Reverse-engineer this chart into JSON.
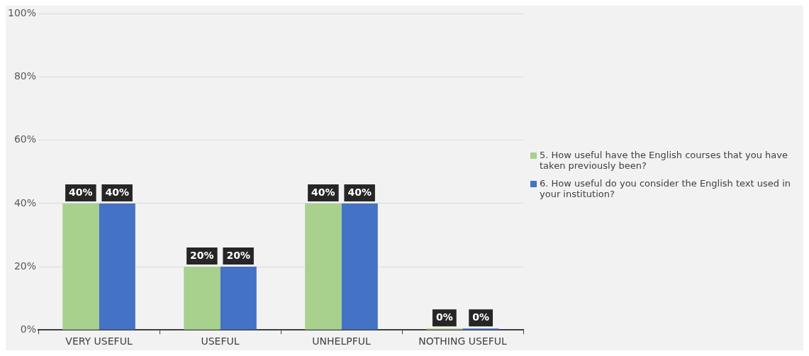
{
  "chart_data": {
    "type": "bar",
    "categories": [
      "VERY USEFUL",
      "USEFUL",
      "UNHELPFUL",
      "NOTHING USEFUL"
    ],
    "series": [
      {
        "name": "5.  How useful have the English courses that you have taken previously been?",
        "color": "#a9d18e",
        "values": [
          40,
          20,
          40,
          0
        ],
        "value_labels": [
          "40%",
          "20%",
          "40%",
          "0%"
        ]
      },
      {
        "name": "6.  How useful do you consider the English text used in your institution?",
        "color": "#4472c4",
        "values": [
          40,
          20,
          40,
          0
        ],
        "value_labels": [
          "40%",
          "20%",
          "40%",
          "0%"
        ]
      }
    ],
    "ylim": [
      0,
      100
    ],
    "yticks": [
      {
        "value": 0,
        "label": "0%"
      },
      {
        "value": 20,
        "label": "20%"
      },
      {
        "value": 40,
        "label": "40%"
      },
      {
        "value": 60,
        "label": "60%"
      },
      {
        "value": 80,
        "label": "80%"
      },
      {
        "value": 100,
        "label": "100%"
      }
    ],
    "grid": "y",
    "legend": "right"
  }
}
